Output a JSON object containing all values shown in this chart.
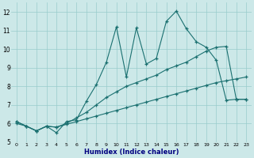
{
  "xlabel": "Humidex (Indice chaleur)",
  "x_ticks": [
    0,
    1,
    2,
    3,
    4,
    5,
    6,
    7,
    8,
    9,
    10,
    11,
    12,
    13,
    14,
    15,
    16,
    17,
    18,
    19,
    20,
    21,
    22,
    23
  ],
  "ylim": [
    5,
    12.5
  ],
  "xlim": [
    -0.5,
    23.5
  ],
  "yticks": [
    5,
    6,
    7,
    8,
    9,
    10,
    11,
    12
  ],
  "background_color": "#cce8e8",
  "grid_color": "#99cccc",
  "line_color": "#1a7070",
  "series1_x": [
    0,
    1,
    2,
    3,
    4,
    5,
    6,
    7,
    8,
    9,
    10,
    11,
    12,
    13,
    14,
    15,
    16,
    17,
    18,
    19,
    20,
    21,
    22,
    23
  ],
  "series1_y": [
    6.1,
    5.85,
    5.6,
    5.85,
    5.5,
    6.1,
    6.2,
    7.2,
    8.1,
    9.3,
    11.2,
    8.5,
    11.15,
    9.2,
    9.5,
    11.5,
    12.05,
    11.1,
    10.4,
    10.1,
    9.4,
    7.25,
    7.3,
    7.3
  ],
  "series2_x": [
    0,
    1,
    2,
    3,
    4,
    5,
    6,
    7,
    8,
    9,
    10,
    11,
    12,
    13,
    14,
    15,
    16,
    17,
    18,
    19,
    20,
    21,
    22,
    23
  ],
  "series2_y": [
    6.1,
    5.85,
    5.6,
    5.85,
    5.8,
    6.0,
    6.3,
    6.6,
    7.0,
    7.4,
    7.7,
    8.0,
    8.2,
    8.4,
    8.6,
    8.9,
    9.1,
    9.3,
    9.6,
    9.9,
    10.1,
    10.15,
    7.3,
    7.3
  ],
  "series3_x": [
    0,
    1,
    2,
    3,
    4,
    5,
    6,
    7,
    8,
    9,
    10,
    11,
    12,
    13,
    14,
    15,
    16,
    17,
    18,
    19,
    20,
    21,
    22,
    23
  ],
  "series3_y": [
    6.0,
    5.85,
    5.6,
    5.85,
    5.8,
    5.95,
    6.1,
    6.25,
    6.4,
    6.55,
    6.7,
    6.85,
    7.0,
    7.15,
    7.3,
    7.45,
    7.6,
    7.75,
    7.9,
    8.05,
    8.2,
    8.3,
    8.4,
    8.5
  ]
}
